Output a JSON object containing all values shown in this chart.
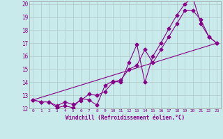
{
  "title": "",
  "xlabel": "Windchill (Refroidissement éolien,°C)",
  "ylabel": "",
  "bg_color": "#c8eaea",
  "grid_color": "#b0c8c8",
  "line_color": "#880088",
  "xlim": [
    -0.5,
    23.5
  ],
  "ylim": [
    12,
    20.2
  ],
  "xticks": [
    0,
    1,
    2,
    3,
    4,
    5,
    6,
    7,
    8,
    9,
    10,
    11,
    12,
    13,
    14,
    15,
    16,
    17,
    18,
    19,
    20,
    21,
    22,
    23
  ],
  "yticks": [
    12,
    13,
    14,
    15,
    16,
    17,
    18,
    19,
    20
  ],
  "series1_x": [
    0,
    1,
    2,
    3,
    4,
    5,
    6,
    7,
    8,
    9,
    10,
    11,
    12,
    13,
    14,
    15,
    16,
    17,
    18,
    19,
    20,
    21,
    22,
    23
  ],
  "series1_y": [
    12.65,
    12.5,
    12.5,
    12.05,
    12.2,
    12.05,
    12.75,
    12.65,
    12.25,
    13.75,
    14.1,
    14.0,
    15.5,
    16.9,
    14.0,
    16.0,
    17.0,
    18.1,
    19.15,
    20.0,
    20.5,
    18.5,
    17.5,
    17.0
  ],
  "series2_x": [
    0,
    1,
    2,
    3,
    4,
    5,
    6,
    7,
    8,
    9,
    10,
    11,
    12,
    13,
    14,
    15,
    16,
    17,
    18,
    19,
    20,
    21,
    22,
    23
  ],
  "series2_y": [
    12.65,
    12.5,
    12.5,
    12.2,
    12.5,
    12.3,
    12.6,
    13.1,
    13.0,
    13.3,
    14.0,
    14.2,
    15.0,
    15.3,
    16.5,
    15.5,
    16.5,
    17.5,
    18.5,
    19.5,
    19.5,
    18.8,
    17.5,
    17.0
  ],
  "series3_x": [
    0,
    23
  ],
  "series3_y": [
    12.65,
    17.0
  ]
}
